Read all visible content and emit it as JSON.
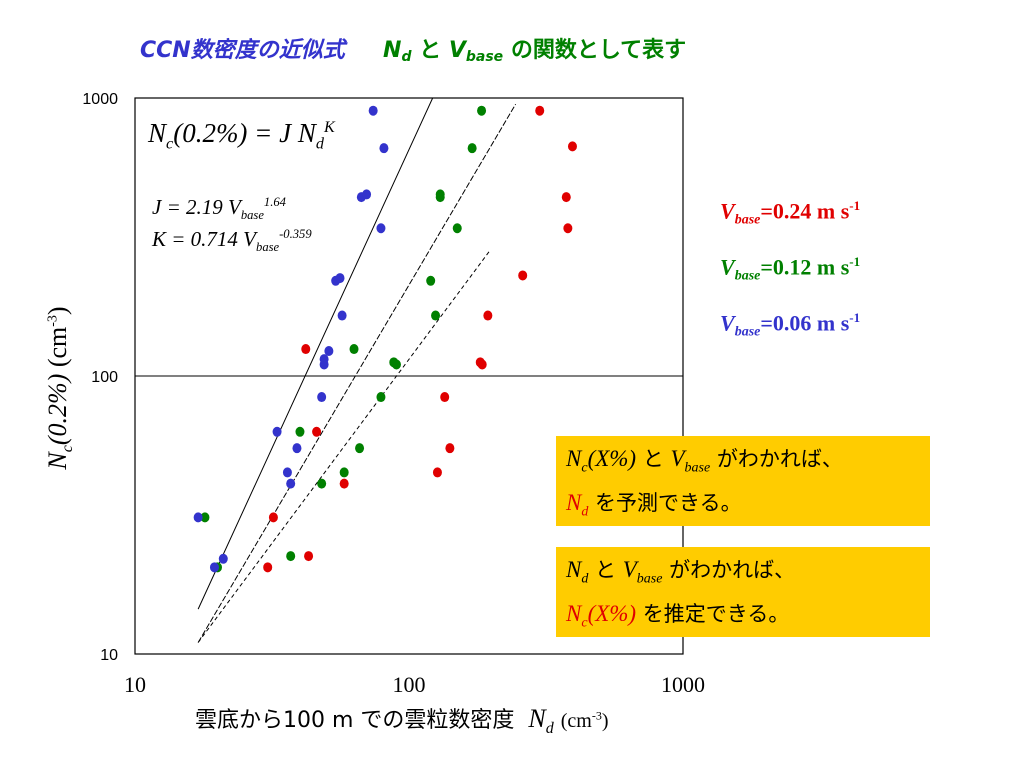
{
  "title": {
    "part1": "CCN数密度の近似式",
    "nd_symbol": "N",
    "nd_sub": "d",
    "conj": "と",
    "vbase_symbol": "V",
    "vbase_sub": "base",
    "part2": "の関数として表す"
  },
  "formulas": {
    "main_lhs": "N",
    "main_lhs_sub": "c",
    "main_mid": "(0.2%) = J N",
    "main_sub": "d",
    "main_sup": "K",
    "j_text": "J = 2.19 V",
    "j_sub": "base",
    "j_sup": "1.64",
    "k_text": "K = 0.714 V",
    "k_sub": "base",
    "k_sup": "-0.359"
  },
  "legend": [
    {
      "v": "V",
      "sub": "base",
      "text": "=0.24 m s",
      "sup": "-1",
      "color": "#e00000"
    },
    {
      "v": "V",
      "sub": "base",
      "text": "=0.12 m s",
      "sup": "-1",
      "color": "#008000"
    },
    {
      "v": "V",
      "sub": "base",
      "text": "=0.06 m s",
      "sup": "-1",
      "color": "#3333cc"
    }
  ],
  "notes": [
    {
      "l1_sym": "N",
      "l1_sub": "c",
      "l1_paren": "(X%)",
      "l1_and": "と",
      "l1_v": "V",
      "l1_vsub": "base",
      "l1_rest": "がわかれば、",
      "l2_sym": "N",
      "l2_sub": "d",
      "l2_paren": "",
      "l2_rest": "を予測できる。"
    },
    {
      "l1_sym": "N",
      "l1_sub": "d",
      "l1_paren": "",
      "l1_and": "と",
      "l1_v": "V",
      "l1_vsub": "base",
      "l1_rest": "がわかれば、",
      "l2_sym": "N",
      "l2_sub": "c",
      "l2_paren": "(X%)",
      "l2_rest": "を推定できる。"
    }
  ],
  "xlabel": {
    "text": "雲底から100 m での雲粒数密度",
    "sym": "N",
    "sub": "d",
    "unit": "(cm",
    "sup": "-3",
    "close": ")"
  },
  "ylabel": {
    "sym": "N",
    "sub": "c",
    "paren": "(0.2%)",
    "unit": " (cm",
    "sup": "-3",
    "close": ")"
  },
  "chart_data": {
    "type": "scatter",
    "xscale": "log",
    "yscale": "log",
    "xlim": [
      10,
      1000
    ],
    "ylim": [
      10,
      1000
    ],
    "xticks": [
      "10",
      "100",
      "1000"
    ],
    "yticks": [
      "10",
      "100",
      "1000"
    ],
    "grid": "horizontal line at 100",
    "series": [
      {
        "name": "Vbase=0.24 m s-1",
        "color": "#e00000",
        "points": [
          [
            30.5,
            20.5
          ],
          [
            32,
            31
          ],
          [
            43,
            22.5
          ],
          [
            42,
            125
          ],
          [
            46,
            63
          ],
          [
            58,
            41
          ],
          [
            127,
            45
          ],
          [
            135,
            84
          ],
          [
            141,
            55
          ],
          [
            182,
            112
          ],
          [
            185,
            110
          ],
          [
            194,
            165
          ],
          [
            260,
            230
          ],
          [
            300,
            900
          ],
          [
            375,
            440
          ],
          [
            380,
            340
          ],
          [
            395,
            670
          ]
        ]
      },
      {
        "name": "Vbase=0.12 m s-1",
        "color": "#008000",
        "points": [
          [
            18,
            31
          ],
          [
            20,
            20.5
          ],
          [
            37,
            22.5
          ],
          [
            40,
            63
          ],
          [
            48,
            41
          ],
          [
            58,
            45
          ],
          [
            63,
            125
          ],
          [
            66,
            55
          ],
          [
            79,
            84
          ],
          [
            88,
            112
          ],
          [
            90,
            110
          ],
          [
            120,
            220
          ],
          [
            125,
            165
          ],
          [
            130,
            450
          ],
          [
            130,
            440
          ],
          [
            150,
            340
          ],
          [
            170,
            660
          ],
          [
            184,
            900
          ]
        ]
      },
      {
        "name": "Vbase=0.06 m s-1",
        "color": "#3333cc",
        "points": [
          [
            17,
            31
          ],
          [
            19.5,
            20.5
          ],
          [
            21,
            22
          ],
          [
            33,
            63
          ],
          [
            36,
            45
          ],
          [
            37,
            41
          ],
          [
            39,
            55
          ],
          [
            48,
            84
          ],
          [
            49,
            110
          ],
          [
            49,
            115
          ],
          [
            51,
            123
          ],
          [
            54,
            220
          ],
          [
            56,
            225
          ],
          [
            57,
            165
          ],
          [
            67,
            440
          ],
          [
            70,
            450
          ],
          [
            74,
            900
          ],
          [
            79,
            340
          ],
          [
            81,
            660
          ]
        ]
      }
    ],
    "fit_lines": [
      {
        "name": "Vbase=0.06",
        "points": [
          [
            17,
            14.5
          ],
          [
            122,
            1000
          ]
        ]
      },
      {
        "name": "Vbase=0.12",
        "points": [
          [
            17,
            11
          ],
          [
            245,
            950
          ]
        ]
      },
      {
        "name": "Vbase=0.24",
        "points": [
          [
            17,
            11
          ],
          [
            196,
            280
          ]
        ]
      }
    ]
  }
}
